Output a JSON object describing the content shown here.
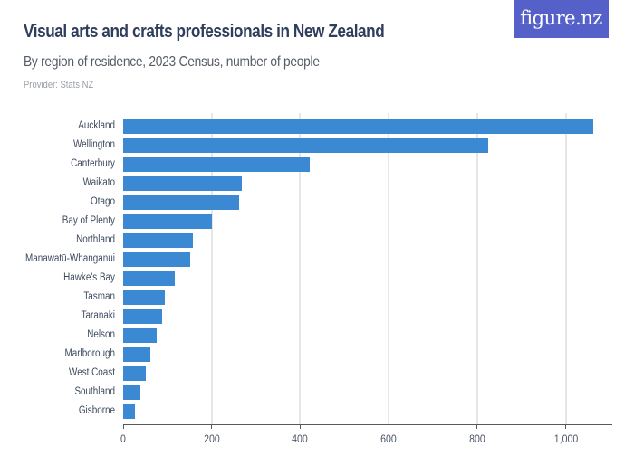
{
  "header": {
    "title": "Visual arts and crafts professionals in New Zealand",
    "subtitle": "By region of residence, 2023 Census, number of people",
    "provider": "Provider: Stats NZ",
    "logo_text": "figure.nz"
  },
  "colors": {
    "bar": "#3b89d2",
    "logo_bg": "#5560c9",
    "title": "#2f3e5c",
    "grid": "#e6e6e6"
  },
  "axis": {
    "ticks": [
      {
        "value": 0,
        "label": "0"
      },
      {
        "value": 200,
        "label": "200"
      },
      {
        "value": 400,
        "label": "400"
      },
      {
        "value": 600,
        "label": "600"
      },
      {
        "value": 800,
        "label": "800"
      },
      {
        "value": 1000,
        "label": "1,000"
      }
    ]
  },
  "chart_data": {
    "type": "bar",
    "orientation": "horizontal",
    "title": "Visual arts and crafts professionals in New Zealand",
    "subtitle": "By region of residence, 2023 Census, number of people",
    "xlabel": "",
    "ylabel": "",
    "xlim": [
      0,
      1100
    ],
    "grid": true,
    "legend": "none",
    "categories": [
      "Auckland",
      "Wellington",
      "Canterbury",
      "Waikato",
      "Otago",
      "Bay of Plenty",
      "Northland",
      "Manawatū-Whanganui",
      "Hawke's Bay",
      "Tasman",
      "Taranaki",
      "Nelson",
      "Marlborough",
      "West Coast",
      "Southland",
      "Gisborne"
    ],
    "values": [
      1063,
      825,
      422,
      269,
      261,
      200,
      158,
      152,
      116,
      95,
      87,
      75,
      61,
      51,
      39,
      27
    ]
  }
}
